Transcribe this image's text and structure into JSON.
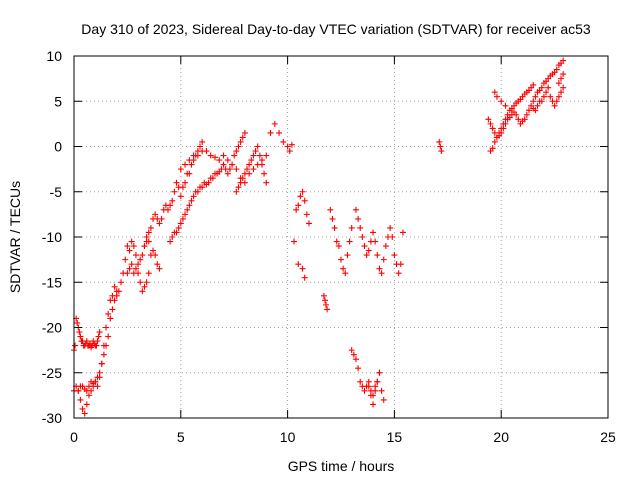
{
  "chart_data": {
    "type": "scatter",
    "title": "Day 310 of 2023, Sidereal Day-to-day VTEC variation (SDTVAR) for receiver ac53",
    "xlabel": "GPS time / hours",
    "ylabel": "SDTVAR / TECUs",
    "xlim": [
      0,
      25
    ],
    "ylim": [
      -30,
      10
    ],
    "xticks": [
      0,
      5,
      10,
      15,
      20,
      25
    ],
    "yticks": [
      -30,
      -25,
      -20,
      -15,
      -10,
      -5,
      0,
      5,
      10
    ],
    "grid": true,
    "marker": "plus",
    "color": "#ff0000",
    "series": [
      {
        "name": "SDTVAR",
        "x": [
          0.0,
          0.05,
          0.1,
          0.15,
          0.2,
          0.25,
          0.3,
          0.35,
          0.4,
          0.45,
          0.5,
          0.55,
          0.6,
          0.65,
          0.7,
          0.75,
          0.8,
          0.85,
          0.9,
          0.95,
          1.0,
          1.05,
          1.1,
          1.15,
          1.2,
          0.0,
          0.1,
          0.2,
          0.3,
          0.4,
          0.5,
          0.6,
          0.7,
          0.8,
          0.9,
          1.0,
          1.1,
          1.2,
          1.3,
          1.4,
          0.2,
          0.3,
          0.4,
          0.5,
          0.6,
          0.7,
          0.8,
          0.9,
          1.0,
          1.1,
          1.2,
          1.3,
          1.4,
          1.5,
          1.6,
          1.7,
          1.8,
          1.9,
          2.0,
          1.5,
          1.6,
          1.7,
          1.8,
          1.9,
          2.0,
          2.1,
          2.2,
          2.3,
          2.4,
          2.5,
          2.6,
          2.7,
          2.8,
          2.9,
          3.0,
          3.1,
          3.2,
          3.3,
          3.4,
          3.5,
          2.5,
          2.6,
          2.7,
          2.8,
          2.9,
          3.0,
          3.1,
          3.2,
          3.3,
          3.4,
          3.5,
          3.6,
          3.7,
          3.8,
          3.9,
          4.0,
          3.3,
          3.4,
          3.5,
          3.6,
          3.7,
          3.8,
          3.9,
          4.0,
          4.1,
          4.2,
          4.3,
          4.4,
          4.5,
          4.6,
          4.7,
          4.8,
          4.9,
          5.0,
          5.1,
          5.2,
          5.3,
          5.4,
          5.5,
          5.6,
          5.7,
          5.8,
          5.9,
          6.0,
          4.5,
          4.6,
          4.7,
          4.8,
          4.9,
          5.0,
          5.1,
          5.2,
          5.3,
          5.4,
          5.5,
          5.6,
          5.7,
          5.8,
          5.9,
          6.0,
          6.1,
          6.2,
          6.3,
          6.4,
          6.5,
          6.6,
          6.7,
          6.8,
          6.9,
          7.0,
          7.1,
          7.2,
          7.3,
          7.4,
          7.5,
          7.6,
          7.7,
          7.8,
          7.9,
          8.0,
          5.0,
          5.2,
          5.4,
          5.6,
          5.8,
          6.0,
          6.2,
          6.4,
          6.6,
          6.8,
          7.0,
          7.2,
          7.4,
          7.6,
          7.8,
          8.0,
          8.2,
          8.4,
          8.6,
          8.8,
          9.0,
          7.6,
          7.7,
          7.8,
          7.9,
          8.0,
          8.1,
          8.2,
          8.3,
          8.4,
          8.5,
          8.6,
          8.7,
          8.8,
          8.9,
          9.0,
          9.2,
          9.4,
          9.6,
          9.8,
          10.0,
          10.1,
          10.2,
          10.4,
          10.5,
          10.6,
          10.7,
          10.8,
          10.9,
          11.0,
          10.3,
          10.5,
          10.7,
          10.8,
          11.7,
          11.75,
          11.8,
          11.85,
          12.0,
          12.1,
          12.2,
          12.3,
          12.4,
          12.5,
          12.6,
          12.7,
          12.8,
          12.9,
          13.0,
          13.2,
          13.3,
          13.4,
          13.5,
          13.6,
          13.7,
          13.8,
          13.9,
          14.0,
          14.1,
          14.2,
          14.3,
          14.4,
          14.5,
          14.6,
          14.7,
          14.8,
          14.9,
          15.0,
          15.1,
          15.2,
          15.3,
          15.4,
          13.0,
          13.1,
          13.2,
          13.3,
          13.4,
          13.5,
          13.6,
          13.7,
          13.8,
          13.9,
          14.0,
          14.1,
          14.2,
          14.3,
          14.4,
          14.5,
          13.8,
          13.9,
          14.0,
          14.1,
          14.2,
          14.3,
          17.1,
          17.15,
          17.2,
          19.5,
          19.6,
          19.7,
          19.8,
          19.9,
          20.0,
          20.1,
          20.2,
          20.3,
          20.4,
          20.5,
          20.6,
          20.7,
          20.8,
          20.9,
          21.0,
          21.1,
          21.2,
          21.3,
          21.4,
          21.5,
          21.5,
          21.6,
          21.7,
          21.8,
          21.9,
          22.0,
          22.1,
          22.2,
          22.3,
          22.4,
          22.5,
          22.6,
          22.7,
          22.8,
          22.9,
          19.4,
          19.5,
          19.6,
          19.7,
          19.8,
          19.9,
          20.0,
          20.1,
          20.2,
          20.3,
          20.4,
          20.5,
          20.6,
          20.7,
          20.8,
          20.9,
          21.0,
          21.1,
          21.2,
          21.3,
          21.4,
          21.5,
          21.6,
          21.7,
          21.8,
          21.9,
          22.0,
          22.1,
          22.2,
          22.3,
          22.4,
          22.5,
          22.6,
          22.7,
          22.8,
          22.9,
          19.7,
          19.8,
          20.0,
          20.2,
          22.7,
          22.8,
          22.9
        ],
        "y": [
          -22.5,
          -22,
          -19,
          -19.5,
          -20,
          -20.5,
          -21,
          -21.5,
          -21.5,
          -22,
          -22,
          -21.8,
          -21.5,
          -22,
          -22,
          -21.8,
          -22.2,
          -22,
          -21.5,
          -21.8,
          -22,
          -22,
          -21.5,
          -21,
          -20.5,
          -27,
          -26.5,
          -27,
          -28,
          -29,
          -29.5,
          -28.5,
          -27.5,
          -27,
          -26.5,
          -26,
          -25.5,
          -25,
          -24,
          -23,
          -27,
          -26.5,
          -26.5,
          -26.8,
          -27,
          -26.5,
          -26,
          -26.2,
          -26,
          -26.5,
          -25.5,
          -24,
          -22,
          -20,
          -18.5,
          -17,
          -16.5,
          -15.5,
          -16,
          -22,
          -21,
          -19,
          -18,
          -17,
          -16.5,
          -16,
          -15,
          -14,
          -12.5,
          -11,
          -11.5,
          -10.5,
          -11,
          -12,
          -13,
          -12.5,
          -12,
          -11,
          -10,
          -9.5,
          -14,
          -13.5,
          -13,
          -14,
          -13.5,
          -14,
          -15,
          -16,
          -15.5,
          -15,
          -14,
          -12,
          -11.5,
          -12,
          -13,
          -13.5,
          -11,
          -10.5,
          -10.5,
          -9,
          -8,
          -7.5,
          -8,
          -8.5,
          -8,
          -7,
          -6.5,
          -7,
          -6.5,
          -6,
          -5,
          -4,
          -4.5,
          -5.5,
          -4.5,
          -4,
          -3,
          -3,
          -2,
          -1.5,
          -1,
          -0.5,
          0,
          0.5,
          -10.5,
          -10,
          -9.5,
          -9.5,
          -9,
          -8.5,
          -8,
          -7.5,
          -7,
          -6.5,
          -6,
          -5.5,
          -5,
          -5,
          -4.5,
          -4.5,
          -4,
          -4.2,
          -4,
          -3.5,
          -3.5,
          -3,
          -3,
          -2.8,
          -2.5,
          -2,
          -2.5,
          -3,
          -2.5,
          -2,
          -1,
          -0.5,
          0,
          0.5,
          1,
          1.5,
          -2.5,
          -2,
          -1.5,
          -1,
          -1,
          -0.5,
          -0.5,
          -1,
          -1.2,
          -1.5,
          -1,
          -1.5,
          -2,
          -2.5,
          -3.5,
          -4,
          -3,
          -2.5,
          -2,
          -1.5,
          -1,
          -5,
          -4.5,
          -4,
          -3.5,
          -3,
          -2.5,
          -2,
          -1.5,
          -1,
          -0.5,
          0,
          -1,
          -2,
          -3,
          -4,
          1.5,
          2.5,
          1.5,
          0.5,
          0,
          -0.5,
          0.2,
          -7,
          -6.5,
          -5.5,
          -5,
          -6,
          -7.5,
          -8.5,
          -10.5,
          -13,
          -13.5,
          -14.5,
          -16.5,
          -17,
          -17.5,
          -18,
          -7,
          -8,
          -9,
          -10.5,
          -11,
          -12.5,
          -13.5,
          -14,
          -12,
          -10.5,
          -9,
          -7,
          -8,
          -9,
          -10,
          -11,
          -12,
          -11.5,
          -10.5,
          -9.5,
          -10.5,
          -12,
          -13.5,
          -14,
          -12.5,
          -11,
          -10,
          -9,
          -10,
          -12,
          -13,
          -14,
          -13,
          -9.5,
          -22.5,
          -23,
          -23.5,
          -24.5,
          -26,
          -26.5,
          -27,
          -26.5,
          -26,
          -27.5,
          -28.5,
          -27,
          -26,
          -25,
          -27,
          -28,
          -26.5,
          -27,
          -27.5,
          -26.5,
          -26,
          -25,
          0.5,
          0,
          -0.5,
          -0.5,
          -0.2,
          0.5,
          1,
          1.5,
          2,
          2.5,
          3,
          3.5,
          4,
          4.2,
          4.5,
          4.8,
          5,
          5.2,
          5.5,
          5.8,
          6,
          6.2,
          6.5,
          6.8,
          5,
          5.5,
          6,
          6.2,
          6.5,
          7,
          7.2,
          7.5,
          7.8,
          8,
          8.2,
          8.5,
          9,
          9.2,
          9.5,
          3,
          2.5,
          2,
          1.5,
          1,
          1.2,
          1.5,
          2,
          2.5,
          3,
          3.2,
          3.5,
          3.8,
          3.5,
          3,
          2.5,
          2.8,
          3,
          3.5,
          4,
          4.5,
          4.2,
          4,
          4.5,
          5,
          5,
          5.5,
          6,
          6.5,
          5.5,
          5,
          4.5,
          5,
          5.5,
          6,
          6.5,
          6,
          5.5,
          5,
          4.5,
          7,
          7.5,
          8
        ]
      }
    ]
  }
}
